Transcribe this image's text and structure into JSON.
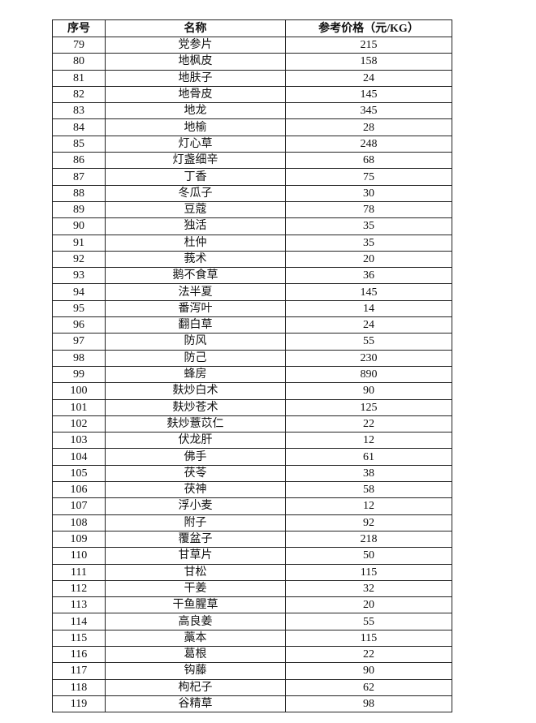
{
  "table": {
    "headers": [
      "序号",
      "名称",
      "参考价格（元/KG）"
    ],
    "rows": [
      [
        "79",
        "党参片",
        "215"
      ],
      [
        "80",
        "地枫皮",
        "158"
      ],
      [
        "81",
        "地肤子",
        "24"
      ],
      [
        "82",
        "地骨皮",
        "145"
      ],
      [
        "83",
        "地龙",
        "345"
      ],
      [
        "84",
        "地榆",
        "28"
      ],
      [
        "85",
        "灯心草",
        "248"
      ],
      [
        "86",
        "灯盏细辛",
        "68"
      ],
      [
        "87",
        "丁香",
        "75"
      ],
      [
        "88",
        "冬瓜子",
        "30"
      ],
      [
        "89",
        "豆蔻",
        "78"
      ],
      [
        "90",
        "独活",
        "35"
      ],
      [
        "91",
        "杜仲",
        "35"
      ],
      [
        "92",
        "莪术",
        "20"
      ],
      [
        "93",
        "鹅不食草",
        "36"
      ],
      [
        "94",
        "法半夏",
        "145"
      ],
      [
        "95",
        "番泻叶",
        "14"
      ],
      [
        "96",
        "翻白草",
        "24"
      ],
      [
        "97",
        "防风",
        "55"
      ],
      [
        "98",
        "防己",
        "230"
      ],
      [
        "99",
        "蜂房",
        "890"
      ],
      [
        "100",
        "麸炒白术",
        "90"
      ],
      [
        "101",
        "麸炒苍术",
        "125"
      ],
      [
        "102",
        "麸炒薏苡仁",
        "22"
      ],
      [
        "103",
        "伏龙肝",
        "12"
      ],
      [
        "104",
        "佛手",
        "61"
      ],
      [
        "105",
        "茯苓",
        "38"
      ],
      [
        "106",
        "茯神",
        "58"
      ],
      [
        "107",
        "浮小麦",
        "12"
      ],
      [
        "108",
        "附子",
        "92"
      ],
      [
        "109",
        "覆盆子",
        "218"
      ],
      [
        "110",
        "甘草片",
        "50"
      ],
      [
        "111",
        "甘松",
        "115"
      ],
      [
        "112",
        "干姜",
        "32"
      ],
      [
        "113",
        "干鱼腥草",
        "20"
      ],
      [
        "114",
        "高良姜",
        "55"
      ],
      [
        "115",
        "藁本",
        "115"
      ],
      [
        "116",
        "葛根",
        "22"
      ],
      [
        "117",
        "钩藤",
        "90"
      ],
      [
        "118",
        "枸杞子",
        "62"
      ],
      [
        "119",
        "谷精草",
        "98"
      ]
    ]
  }
}
